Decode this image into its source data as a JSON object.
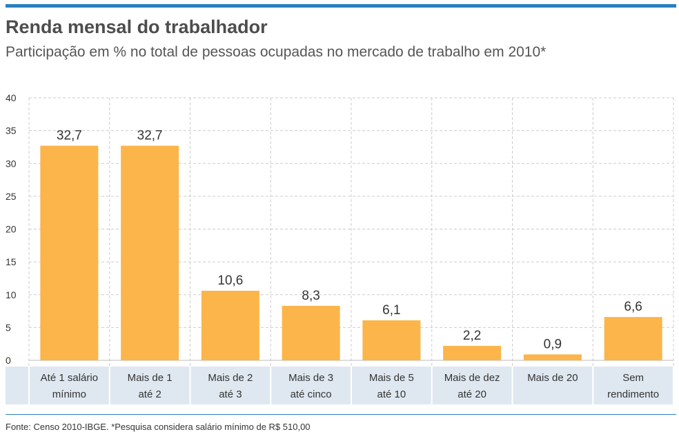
{
  "header": {
    "title": "Renda mensal do trabalhador",
    "subtitle": "Participação em % no total de pessoas ocupadas no mercado de trabalho em 2010*"
  },
  "footer": {
    "source": "Fonte: Censo 2010-IBGE. *Pesquisa considera salário mínimo de R$ 510,00"
  },
  "colors": {
    "bar": "#fbb54a",
    "accent": "#2b7fc0",
    "category_band": "#dfe8f0",
    "grid": "#cccccc"
  },
  "chart_data": {
    "type": "bar",
    "title": "Renda mensal do trabalhador",
    "subtitle": "Participação em % no total de pessoas ocupadas no mercado de trabalho em 2010*",
    "categories": [
      [
        "Até 1  salário",
        "mínimo"
      ],
      [
        "Mais de 1",
        "até 2"
      ],
      [
        "Mais de 2",
        "até 3"
      ],
      [
        "Mais de 3",
        "até cinco"
      ],
      [
        "Mais de 5",
        "até 10"
      ],
      [
        "Mais de dez",
        "até 20"
      ],
      [
        "Mais de 20"
      ],
      [
        "Sem",
        "rendimento"
      ]
    ],
    "values": [
      32.7,
      32.7,
      10.6,
      8.3,
      6.1,
      2.2,
      0.9,
      6.6
    ],
    "value_labels": [
      "32,7",
      "32,7",
      "10,6",
      "8,3",
      "6,1",
      "2,2",
      "0,9",
      "6,6"
    ],
    "yticks": [
      0,
      5,
      10,
      15,
      20,
      25,
      30,
      35,
      40
    ],
    "ylim": [
      0,
      40
    ],
    "grid": true,
    "legend": "none"
  }
}
